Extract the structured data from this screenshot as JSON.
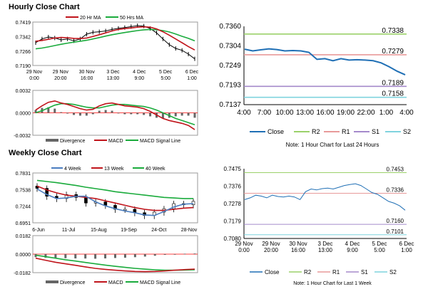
{
  "sections": {
    "hourly_title": "Hourly Close Chart",
    "weekly_title": "Weekly Close Chart"
  },
  "colors": {
    "close": "#1f6fb5",
    "r2": "#9bd16a",
    "r1": "#e89a9a",
    "s1": "#a58acb",
    "s2": "#7fd3de",
    "ma_red": "#c0141b",
    "ma_green": "#1aab3c",
    "ma_blue": "#4a7dbf",
    "grey": "#666666",
    "zero": "#ff0000",
    "frame": "#9a9a9a"
  },
  "chart_data": [
    {
      "id": "hourly_price",
      "type": "line",
      "title": "Hourly Close Chart",
      "legend": [
        "20 Hr MA",
        "50 Hrs MA"
      ],
      "yticks": [
        "0.7419",
        "0.7342",
        "0.7266",
        "0.7190"
      ],
      "ylim": [
        0.719,
        0.7419
      ],
      "xticks": [
        "29 Nov|0:00",
        "29 Nov|20:00",
        "30 Nov|16:00",
        "3 Dec|13:00",
        "4 Dec|9:00",
        "5 Dec|5:00",
        "6 Dec|1:00"
      ],
      "ma20": [
        0.7318,
        0.7322,
        0.7328,
        0.7335,
        0.7338,
        0.7336,
        0.7333,
        0.7332,
        0.7335,
        0.7343,
        0.7352,
        0.7362,
        0.7372,
        0.738,
        0.7385,
        0.7388,
        0.7392,
        0.7394,
        0.7392,
        0.7383,
        0.7368,
        0.735,
        0.733,
        0.731,
        0.729,
        0.7272
      ],
      "ma50": [
        0.7278,
        0.7282,
        0.7288,
        0.7295,
        0.7302,
        0.7308,
        0.7313,
        0.7318,
        0.7323,
        0.733,
        0.7337,
        0.7345,
        0.7352,
        0.7358,
        0.7364,
        0.7369,
        0.7374,
        0.7378,
        0.738,
        0.7379,
        0.7374,
        0.7367,
        0.7356,
        0.7344,
        0.7333,
        0.732
      ],
      "close": [
        0.731,
        0.733,
        0.734,
        0.7335,
        0.7325,
        0.733,
        0.732,
        0.733,
        0.7355,
        0.7365,
        0.7368,
        0.7372,
        0.738,
        0.7386,
        0.739,
        0.7395,
        0.74,
        0.7398,
        0.7385,
        0.7362,
        0.733,
        0.73,
        0.728,
        0.727,
        0.725,
        0.7225
      ]
    },
    {
      "id": "hourly_macd",
      "type": "bar",
      "yticks": [
        "0.0032",
        "0.0000",
        "-0.0032"
      ],
      "ylim": [
        -0.0032,
        0.0032
      ],
      "legend": [
        "Divergence",
        "MACD",
        "MACD Signal Line"
      ],
      "macd": [
        0.0004,
        0.001,
        0.0015,
        0.0017,
        0.0014,
        0.0012,
        0.0009,
        0.0006,
        0.0004,
        0.0005,
        0.001,
        0.0013,
        0.0014,
        0.0012,
        0.001,
        0.0009,
        0.0008,
        0.0006,
        0.0002,
        -0.0003,
        -0.0008,
        -0.0011,
        -0.0013,
        -0.0015,
        -0.0018,
        -0.0024
      ],
      "signal": [
        0.0,
        0.0003,
        0.0007,
        0.0011,
        0.0013,
        0.0013,
        0.0012,
        0.001,
        0.0008,
        0.0007,
        0.0007,
        0.0009,
        0.0011,
        0.0012,
        0.0012,
        0.0011,
        0.001,
        0.0009,
        0.0007,
        0.0004,
        0.0,
        -0.0004,
        -0.0008,
        -0.0011,
        -0.0014,
        -0.0017
      ]
    },
    {
      "id": "hourly_levels",
      "type": "line",
      "yticks": [
        "0.7360",
        "0.7304",
        "0.7249",
        "0.7193",
        "0.7137"
      ],
      "ylim": [
        0.7137,
        0.736
      ],
      "xticks": [
        "4:00",
        "7:00",
        "10:00",
        "13:00",
        "16:00",
        "19:00",
        "22:00",
        "1:00",
        "4:00"
      ],
      "levels": {
        "R2": 0.7338,
        "R1": 0.7279,
        "S1": 0.7189,
        "S2": 0.7158
      },
      "level_labels": {
        "R2": "0.7338",
        "R1": "0.7279",
        "S1": "0.7189",
        "S2": "0.7158"
      },
      "close": [
        0.7295,
        0.729,
        0.7293,
        0.7296,
        0.7294,
        0.729,
        0.7291,
        0.729,
        0.7286,
        0.7266,
        0.7268,
        0.7262,
        0.7268,
        0.7264,
        0.7265,
        0.7264,
        0.7262,
        0.7256,
        0.7245,
        0.7232,
        0.7222
      ],
      "legend": [
        "Close",
        "R2",
        "R1",
        "S1",
        "S2"
      ],
      "note": "Note: 1 Hour Chart for Last 24 Hours"
    },
    {
      "id": "weekly_price",
      "type": "line",
      "title": "Weekly Close Chart",
      "legend": [
        "4 Week",
        "13 Week",
        "40 Week"
      ],
      "yticks": [
        "0.7831",
        "0.7538",
        "0.7244",
        "0.6951"
      ],
      "ylim": [
        0.6951,
        0.7831
      ],
      "xticks": [
        "6-Jun",
        "11-Jul",
        "15-Aug",
        "19-Sep",
        "24-Oct",
        "28-Nov"
      ],
      "w40": [
        0.77,
        0.768,
        0.766,
        0.7635,
        0.761,
        0.758,
        0.7555,
        0.753,
        0.75,
        0.748,
        0.746,
        0.744,
        0.742,
        0.74,
        0.739,
        0.738,
        0.738
      ],
      "w13": [
        0.76,
        0.753,
        0.748,
        0.744,
        0.742,
        0.74,
        0.738,
        0.734,
        0.73,
        0.726,
        0.722,
        0.719,
        0.717,
        0.717,
        0.719,
        0.721,
        0.722
      ],
      "w4": [
        0.755,
        0.745,
        0.738,
        0.739,
        0.742,
        0.742,
        0.732,
        0.725,
        0.72,
        0.716,
        0.713,
        0.709,
        0.708,
        0.715,
        0.723,
        0.728,
        0.729
      ],
      "candles_close": [
        0.756,
        0.742,
        0.738,
        0.745,
        0.74,
        0.73,
        0.732,
        0.726,
        0.719,
        0.719,
        0.713,
        0.708,
        0.714,
        0.72,
        0.729,
        0.727,
        0.733
      ]
    },
    {
      "id": "weekly_macd",
      "type": "bar",
      "yticks": [
        "0.0182",
        "0.0000",
        "-0.0182"
      ],
      "ylim": [
        -0.0182,
        0.0182
      ],
      "legend": [
        "Divergence",
        "MACD",
        "MACD Signal Line"
      ],
      "macd": [
        -0.004,
        -0.006,
        -0.008,
        -0.0095,
        -0.011,
        -0.0125,
        -0.014,
        -0.015,
        -0.0158,
        -0.0165,
        -0.017,
        -0.0172,
        -0.017,
        -0.0165,
        -0.0158,
        -0.0152,
        -0.0148
      ],
      "signal": [
        -0.001,
        -0.0025,
        -0.004,
        -0.0055,
        -0.0068,
        -0.0082,
        -0.0095,
        -0.0108,
        -0.012,
        -0.013,
        -0.014,
        -0.0148,
        -0.0154,
        -0.0158,
        -0.0158,
        -0.0156,
        -0.0154
      ]
    },
    {
      "id": "weekly_levels",
      "type": "line",
      "yticks": [
        "0.7475",
        "0.7376",
        "0.7278",
        "0.7179",
        "0.7080"
      ],
      "ylim": [
        0.708,
        0.7475
      ],
      "xticks": [
        "29 Nov|0:00",
        "29 Nov|20:00",
        "30 Nov|16:00",
        "3 Dec|13:00",
        "4 Dec|9:00",
        "5 Dec|5:00",
        "6 Dec|1:00"
      ],
      "levels": {
        "R2": 0.7453,
        "R1": 0.7336,
        "S1": 0.716,
        "S2": 0.7101
      },
      "level_labels": {
        "R2": "0.7453",
        "R1": "0.7336",
        "S1": "0.7160",
        "S2": "0.7101"
      },
      "close": [
        0.73,
        0.731,
        0.7325,
        0.732,
        0.731,
        0.7325,
        0.7318,
        0.7315,
        0.732,
        0.7315,
        0.73,
        0.7345,
        0.736,
        0.7355,
        0.7362,
        0.7365,
        0.736,
        0.737,
        0.738,
        0.7385,
        0.739,
        0.738,
        0.736,
        0.734,
        0.733,
        0.731,
        0.729,
        0.728,
        0.7265,
        0.724
      ],
      "legend": [
        "Close",
        "R2",
        "R1",
        "S1",
        "S2"
      ],
      "note": "Note: 1 Hour Chart for Last 1 Week"
    }
  ]
}
